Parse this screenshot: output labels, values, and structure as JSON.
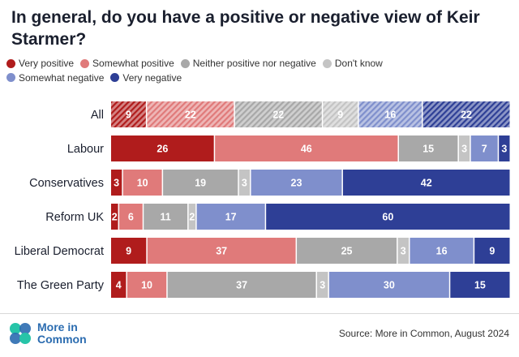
{
  "title": "In general, do you have a positive or negative view of Keir Starmer?",
  "source": "Source: More in Common, August 2024",
  "logo": {
    "line1": "More in",
    "line2": "Common"
  },
  "colors": {
    "very_positive": "#b01c1c",
    "somewhat_positive": "#e07a7a",
    "neither": "#a8a8a8",
    "dont_know": "#c4c4c4",
    "somewhat_negative": "#7f8fcc",
    "very_negative": "#2e3f96"
  },
  "chart_data": {
    "type": "bar",
    "orientation": "horizontal",
    "stacked": true,
    "normalized_percent": true,
    "legend_placement": "top",
    "grid": false,
    "categories": [
      "All",
      "Labour",
      "Conservatives",
      "Reform UK",
      "Liberal Democrat",
      "The Green Party"
    ],
    "hatched_categories": [
      "All"
    ],
    "series": [
      {
        "name": "Very positive",
        "color": "#b01c1c",
        "values": [
          9,
          26,
          3,
          2,
          9,
          4
        ]
      },
      {
        "name": "Somewhat positive",
        "color": "#e07a7a",
        "values": [
          22,
          46,
          10,
          6,
          37,
          10
        ]
      },
      {
        "name": "Neither positive nor negative",
        "color": "#a8a8a8",
        "values": [
          22,
          15,
          19,
          11,
          25,
          37
        ]
      },
      {
        "name": "Don't know",
        "color": "#c4c4c4",
        "values": [
          9,
          3,
          3,
          2,
          3,
          3
        ]
      },
      {
        "name": "Somewhat negative",
        "color": "#7f8fcc",
        "values": [
          16,
          7,
          23,
          17,
          16,
          30
        ]
      },
      {
        "name": "Very negative",
        "color": "#2e3f96",
        "values": [
          22,
          3,
          42,
          60,
          9,
          15
        ]
      }
    ]
  }
}
